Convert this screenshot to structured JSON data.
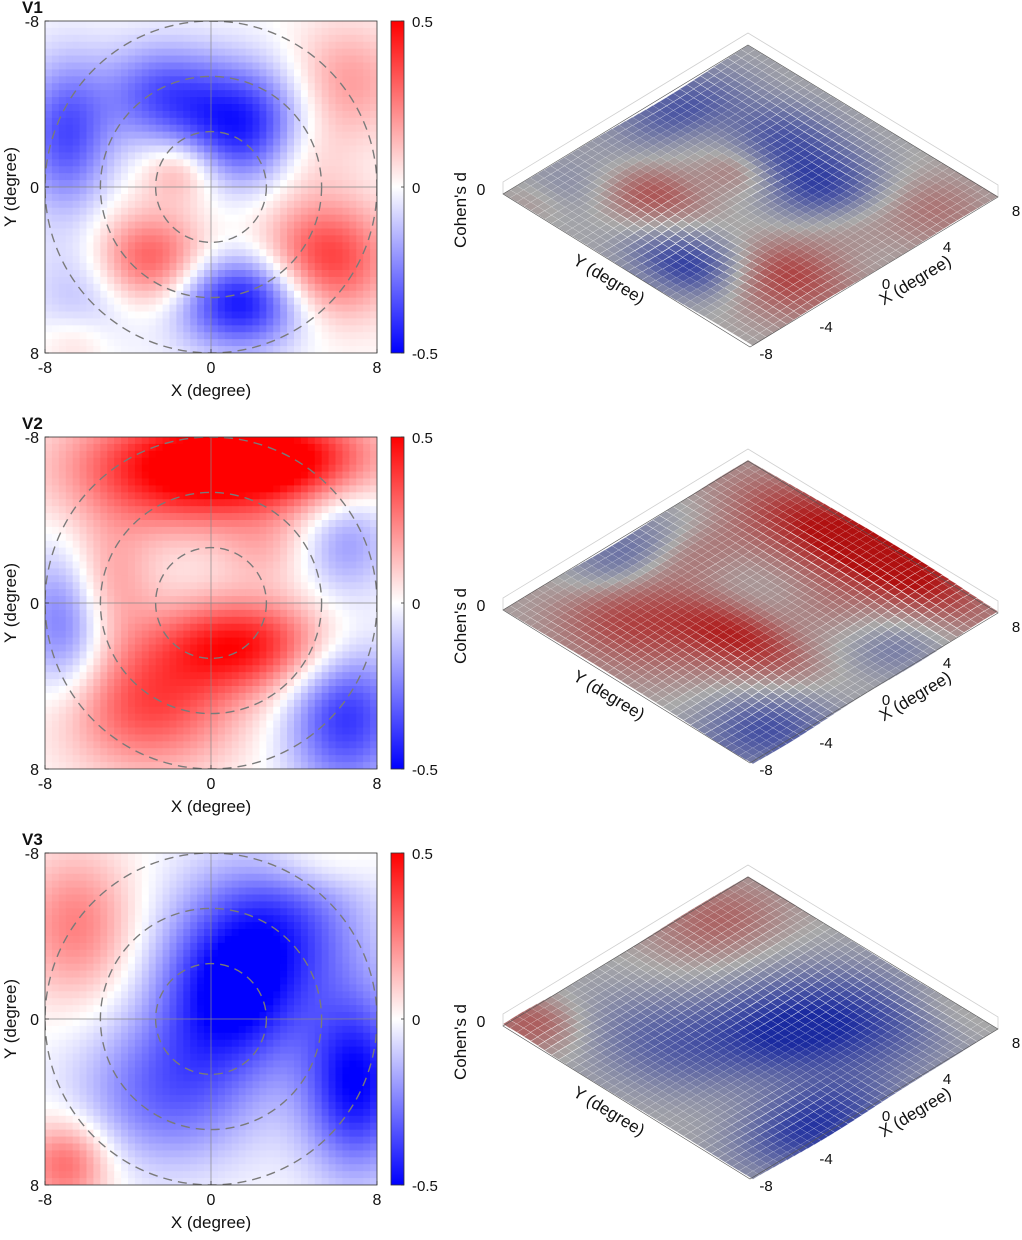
{
  "chart_data": [
    {
      "type": "heatmap",
      "title": "V1",
      "xlabel": "X (degree)",
      "ylabel": "Y (degree)",
      "xlim": [
        -8,
        8
      ],
      "ylim": [
        -8,
        8
      ],
      "y_direction": "down",
      "xticks": [
        "-8",
        "0",
        "8"
      ],
      "yticks": [
        "-8",
        "0",
        "8"
      ],
      "dashed_circle_radii": [
        2.67,
        5.33,
        8
      ],
      "crosshair_at_origin": true,
      "colorbar": {
        "label": "",
        "range": [
          -0.5,
          0.5
        ],
        "ticks": [
          "0.5",
          "0",
          "-0.5"
        ],
        "colors": [
          "#0000ff",
          "#ffffff",
          "#ff0000"
        ]
      },
      "blobs": [
        {
          "x": 1.5,
          "y": -3,
          "sx": 2.2,
          "sy": 2.0,
          "v": -0.45
        },
        {
          "x": -2.5,
          "y": -4.5,
          "sx": 2.0,
          "sy": 1.7,
          "v": -0.3
        },
        {
          "x": -7,
          "y": -2.5,
          "sx": 1.5,
          "sy": 2.5,
          "v": -0.35
        },
        {
          "x": -6,
          "y": 5,
          "sx": 1.8,
          "sy": 2.0,
          "v": -0.15
        },
        {
          "x": 1.5,
          "y": 5.5,
          "sx": 2.2,
          "sy": 1.6,
          "v": -0.5
        },
        {
          "x": -3,
          "y": 3.5,
          "sx": 2.0,
          "sy": 1.6,
          "v": 0.35
        },
        {
          "x": -1.5,
          "y": -0.8,
          "sx": 1.3,
          "sy": 1.1,
          "v": 0.2
        },
        {
          "x": 5.5,
          "y": 3.5,
          "sx": 2.2,
          "sy": 2.0,
          "v": 0.4
        },
        {
          "x": 6.5,
          "y": -5,
          "sx": 2.0,
          "sy": 2.0,
          "v": 0.2
        },
        {
          "x": 4.5,
          "y": -1.5,
          "sx": 1.5,
          "sy": 1.5,
          "v": 0.1
        },
        {
          "x": -6.5,
          "y": 7.5,
          "sx": 1.2,
          "sy": 1.0,
          "v": 0.1
        }
      ],
      "surface_3d": {
        "zlabel": "Cohen's d",
        "x_axis_label": "X (degree)",
        "y_axis_label": "Y (degree)",
        "x_ticks": [
          "-4",
          "0",
          "4",
          "8"
        ],
        "y_ticks": [
          "-8"
        ],
        "z_ticks": [
          "0"
        ]
      }
    },
    {
      "type": "heatmap",
      "title": "V2",
      "xlabel": "X (degree)",
      "ylabel": "Y (degree)",
      "xlim": [
        -8,
        8
      ],
      "ylim": [
        -8,
        8
      ],
      "y_direction": "down",
      "xticks": [
        "-8",
        "0",
        "8"
      ],
      "yticks": [
        "-8",
        "0",
        "8"
      ],
      "dashed_circle_radii": [
        2.67,
        5.33,
        8
      ],
      "crosshair_at_origin": true,
      "colorbar": {
        "label": "",
        "range": [
          -0.5,
          0.5
        ],
        "ticks": [
          "0.5",
          "0",
          "-0.5"
        ],
        "colors": [
          "#0000ff",
          "#ffffff",
          "#ff0000"
        ]
      },
      "blobs": [
        {
          "x": -1,
          "y": -6.5,
          "sx": 4.0,
          "sy": 2.0,
          "v": 0.55
        },
        {
          "x": 4,
          "y": -7,
          "sx": 3.0,
          "sy": 1.5,
          "v": 0.35
        },
        {
          "x": 1.5,
          "y": 2,
          "sx": 3.0,
          "sy": 1.6,
          "v": 0.45
        },
        {
          "x": -3,
          "y": 5,
          "sx": 3.0,
          "sy": 2.2,
          "v": 0.35
        },
        {
          "x": -5,
          "y": -1,
          "sx": 1.5,
          "sy": 2.0,
          "v": 0.2
        },
        {
          "x": 2.5,
          "y": -2.5,
          "sx": 1.5,
          "sy": 1.2,
          "v": 0.1
        },
        {
          "x": -7,
          "y": 1,
          "sx": 1.5,
          "sy": 2.5,
          "v": -0.3
        },
        {
          "x": 6.5,
          "y": 5.5,
          "sx": 2.0,
          "sy": 2.5,
          "v": -0.4
        },
        {
          "x": 6.5,
          "y": -3,
          "sx": 1.5,
          "sy": 1.8,
          "v": -0.2
        }
      ],
      "surface_3d": {
        "zlabel": "Cohen's d",
        "x_axis_label": "X (degree)",
        "y_axis_label": "Y (degree)",
        "x_ticks": [
          "-4",
          "0",
          "4",
          "8"
        ],
        "y_ticks": [
          "-8"
        ],
        "z_ticks": [
          "0"
        ]
      }
    },
    {
      "type": "heatmap",
      "title": "V3",
      "xlabel": "X (degree)",
      "ylabel": "Y (degree)",
      "xlim": [
        -8,
        8
      ],
      "ylim": [
        -8,
        8
      ],
      "y_direction": "down",
      "xticks": [
        "-8",
        "0",
        "8"
      ],
      "yticks": [
        "-8",
        "0",
        "8"
      ],
      "dashed_circle_radii": [
        2.67,
        5.33,
        8
      ],
      "crosshair_at_origin": true,
      "colorbar": {
        "label": "",
        "range": [
          -0.5,
          0.5
        ],
        "ticks": [
          "0.5",
          "0",
          "-0.5"
        ],
        "colors": [
          "#0000ff",
          "#ffffff",
          "#ff0000"
        ]
      },
      "blobs": [
        {
          "x": 1,
          "y": -1,
          "sx": 2.5,
          "sy": 2.5,
          "v": -0.45
        },
        {
          "x": 3,
          "y": -4.5,
          "sx": 3.0,
          "sy": 2.5,
          "v": -0.35
        },
        {
          "x": -2,
          "y": 3.5,
          "sx": 3.0,
          "sy": 2.5,
          "v": -0.3
        },
        {
          "x": 7,
          "y": 3,
          "sx": 1.8,
          "sy": 3.0,
          "v": -0.5
        },
        {
          "x": -6.5,
          "y": -4.5,
          "sx": 2.0,
          "sy": 2.5,
          "v": 0.25
        },
        {
          "x": -7,
          "y": 7,
          "sx": 1.5,
          "sy": 1.5,
          "v": 0.3
        },
        {
          "x": 5,
          "y": -7.5,
          "sx": 2.0,
          "sy": 1.0,
          "v": 0.1
        }
      ],
      "surface_3d": {
        "zlabel": "Cohen's d",
        "x_axis_label": "X (degree)",
        "y_axis_label": "Y (degree)",
        "x_ticks": [
          "-4",
          "0",
          "4",
          "8"
        ],
        "y_ticks": [
          "-8"
        ],
        "z_ticks": [
          "0"
        ]
      }
    }
  ]
}
